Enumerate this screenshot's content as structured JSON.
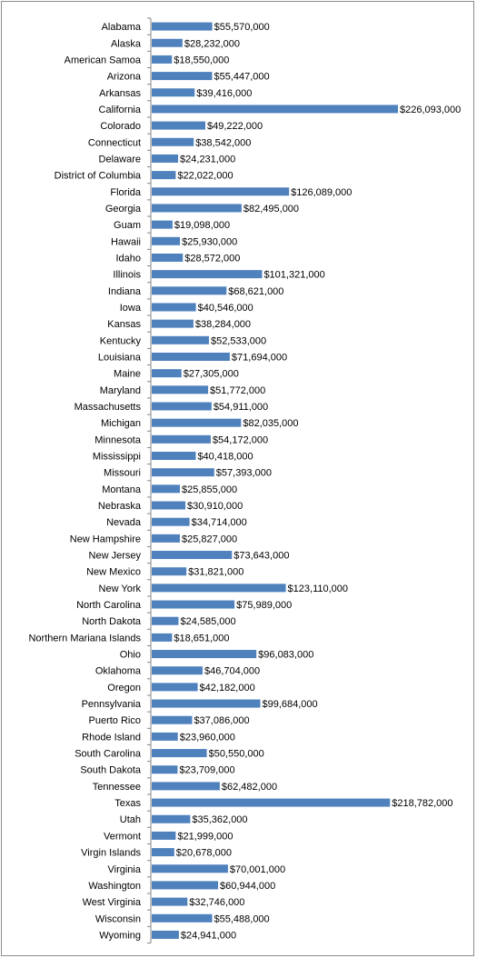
{
  "colors": {
    "bar": "#4f81bd",
    "axis": "#868686",
    "border": "#8c8c8c"
  },
  "chart_data": {
    "type": "bar",
    "orientation": "horizontal",
    "title": "",
    "xlabel": "",
    "ylabel": "",
    "grid": false,
    "legend": "none",
    "xlim": [
      0,
      226093000
    ],
    "categories": [
      "Alabama",
      "Alaska",
      "American Samoa",
      "Arizona",
      "Arkansas",
      "California",
      "Colorado",
      "Connecticut",
      "Delaware",
      "District of Columbia",
      "Florida",
      "Georgia",
      "Guam",
      "Hawaii",
      "Idaho",
      "Illinois",
      "Indiana",
      "Iowa",
      "Kansas",
      "Kentucky",
      "Louisiana",
      "Maine",
      "Maryland",
      "Massachusetts",
      "Michigan",
      "Minnesota",
      "Mississippi",
      "Missouri",
      "Montana",
      "Nebraska",
      "Nevada",
      "New Hampshire",
      "New Jersey",
      "New Mexico",
      "New York",
      "North Carolina",
      "North Dakota",
      "Northern Mariana Islands",
      "Ohio",
      "Oklahoma",
      "Oregon",
      "Pennsylvania",
      "Puerto Rico",
      "Rhode Island",
      "South Carolina",
      "South Dakota",
      "Tennessee",
      "Texas",
      "Utah",
      "Vermont",
      "Virgin Islands",
      "Virginia",
      "Washington",
      "West Virginia",
      "Wisconsin",
      "Wyoming"
    ],
    "values": [
      55570000,
      28232000,
      18550000,
      55447000,
      39416000,
      226093000,
      49222000,
      38542000,
      24231000,
      22022000,
      126089000,
      82495000,
      19098000,
      25930000,
      28572000,
      101321000,
      68621000,
      40546000,
      38284000,
      52533000,
      71694000,
      27305000,
      51772000,
      54911000,
      82035000,
      54172000,
      40418000,
      57393000,
      25855000,
      30910000,
      34714000,
      25827000,
      73643000,
      31821000,
      123110000,
      75989000,
      24585000,
      18651000,
      96083000,
      46704000,
      42182000,
      99684000,
      37086000,
      23960000,
      50550000,
      23709000,
      62482000,
      218782000,
      35362000,
      21999000,
      20678000,
      70001000,
      60944000,
      32746000,
      55488000,
      24941000
    ],
    "data_labels": [
      "$55,570,000",
      "$28,232,000",
      "$18,550,000",
      "$55,447,000",
      "$39,416,000",
      "$226,093,000",
      "$49,222,000",
      "$38,542,000",
      "$24,231,000",
      "$22,022,000",
      "$126,089,000",
      "$82,495,000",
      "$19,098,000",
      "$25,930,000",
      "$28,572,000",
      "$101,321,000",
      "$68,621,000",
      "$40,546,000",
      "$38,284,000",
      "$52,533,000",
      "$71,694,000",
      "$27,305,000",
      "$51,772,000",
      "$54,911,000",
      "$82,035,000",
      "$54,172,000",
      "$40,418,000",
      "$57,393,000",
      "$25,855,000",
      "$30,910,000",
      "$34,714,000",
      "$25,827,000",
      "$73,643,000",
      "$31,821,000",
      "$123,110,000",
      "$75,989,000",
      "$24,585,000",
      "$18,651,000",
      "$96,083,000",
      "$46,704,000",
      "$42,182,000",
      "$99,684,000",
      "$37,086,000",
      "$23,960,000",
      "$50,550,000",
      "$23,709,000",
      "$62,482,000",
      "$218,782,000",
      "$35,362,000",
      "$21,999,000",
      "$20,678,000",
      "$70,001,000",
      "$60,944,000",
      "$32,746,000",
      "$55,488,000",
      "$24,941,000"
    ]
  }
}
